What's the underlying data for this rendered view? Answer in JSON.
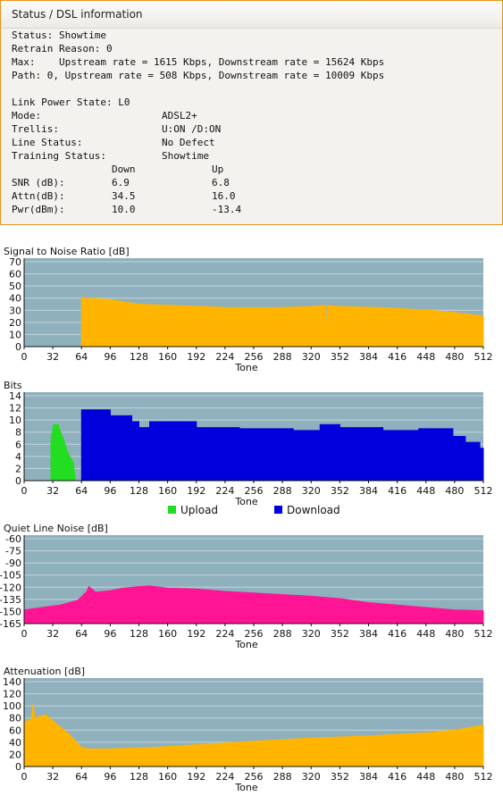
{
  "panel": {
    "title": "Status / DSL information",
    "lines": [
      "Status: Showtime",
      "Retrain Reason: 0",
      "Max:    Upstream rate = 1615 Kbps, Downstream rate = 15624 Kbps",
      "Path: 0, Upstream rate = 508 Kbps, Downstream rate = 10009 Kbps"
    ],
    "fields": [
      {
        "label": "Link Power State: L0",
        "value": ""
      },
      {
        "label": "Mode:",
        "value": "ADSL2+"
      },
      {
        "label": "Trellis:",
        "value": "U:ON /D:ON"
      },
      {
        "label": "Line Status:",
        "value": "No Defect"
      },
      {
        "label": "Training Status:",
        "value": "Showtime"
      }
    ],
    "table": {
      "header_down": "Down",
      "header_up": "Up",
      "rows": [
        {
          "label": "SNR (dB):",
          "down": "6.9",
          "up": "6.8"
        },
        {
          "label": "Attn(dB):",
          "down": "34.5",
          "up": "16.0"
        },
        {
          "label": "Pwr(dBm):",
          "down": "10.0",
          "up": "-13.4"
        }
      ]
    }
  },
  "colors": {
    "plot_bg": "#8fb0bd",
    "grid": "#c2d6dc",
    "orange": "#ffb400",
    "upload": "#22dd22",
    "download": "#0000dd",
    "noise": "#ff1493",
    "panel_border": "#e8941a"
  },
  "chart_data": [
    {
      "id": "snr",
      "type": "area",
      "title": "Signal to Noise Ratio [dB]",
      "xlabel": "Tone",
      "xlim": [
        0,
        512
      ],
      "ylim": [
        0,
        75
      ],
      "yticks": [
        "70",
        "60",
        "50",
        "40",
        "30",
        "20",
        "10",
        "0"
      ],
      "xticks": [
        "0",
        "32",
        "64",
        "96",
        "128",
        "160",
        "192",
        "224",
        "256",
        "288",
        "320",
        "352",
        "384",
        "416",
        "448",
        "480",
        "512"
      ],
      "series": [
        {
          "color": "#ffb400",
          "points": [
            [
              64,
              42
            ],
            [
              70,
              41
            ],
            [
              96,
              40
            ],
            [
              110,
              38
            ],
            [
              128,
              36
            ],
            [
              160,
              35
            ],
            [
              200,
              34
            ],
            [
              230,
              33
            ],
            [
              280,
              33
            ],
            [
              320,
              34
            ],
            [
              336,
              35
            ],
            [
              337,
              2
            ],
            [
              338,
              35
            ],
            [
              352,
              34
            ],
            [
              400,
              33
            ],
            [
              450,
              31
            ],
            [
              480,
              29
            ],
            [
              512,
              26
            ],
            [
              512,
              0
            ],
            [
              64,
              0
            ]
          ]
        }
      ]
    },
    {
      "id": "bits",
      "type": "area",
      "title": "Bits",
      "xlabel": "Tone",
      "xlim": [
        0,
        512
      ],
      "ylim": [
        0,
        15
      ],
      "yticks": [
        "14",
        "12",
        "10",
        "8",
        "6",
        "4",
        "2",
        "0"
      ],
      "xticks": [
        "0",
        "32",
        "64",
        "96",
        "128",
        "160",
        "192",
        "224",
        "256",
        "288",
        "320",
        "352",
        "384",
        "416",
        "448",
        "480",
        "512"
      ],
      "legend": [
        {
          "label": "Upload",
          "color": "#22dd22"
        },
        {
          "label": "Download",
          "color": "#0000dd"
        }
      ],
      "series": [
        {
          "color": "#22dd22",
          "points": [
            [
              30,
              0
            ],
            [
              30,
              7
            ],
            [
              33,
              9.5
            ],
            [
              38,
              9.5
            ],
            [
              40,
              8.5
            ],
            [
              44,
              7
            ],
            [
              48,
              5
            ],
            [
              55,
              3
            ],
            [
              57,
              0
            ]
          ]
        },
        {
          "color": "#0000dd",
          "points": [
            [
              64,
              0
            ],
            [
              64,
              12
            ],
            [
              96,
              12
            ],
            [
              96,
              11
            ],
            [
              120,
              11
            ],
            [
              120,
              10
            ],
            [
              128,
              10
            ],
            [
              128,
              9
            ],
            [
              140,
              9
            ],
            [
              140,
              10
            ],
            [
              192,
              10
            ],
            [
              192,
              9
            ],
            [
              240,
              9
            ],
            [
              240,
              8.8
            ],
            [
              300,
              8.8
            ],
            [
              300,
              8.5
            ],
            [
              330,
              8.5
            ],
            [
              330,
              9.5
            ],
            [
              352,
              9.5
            ],
            [
              352,
              9
            ],
            [
              400,
              9
            ],
            [
              400,
              8.5
            ],
            [
              440,
              8.5
            ],
            [
              440,
              8.8
            ],
            [
              478,
              8.8
            ],
            [
              478,
              7.5
            ],
            [
              492,
              7.5
            ],
            [
              492,
              6.5
            ],
            [
              508,
              6.5
            ],
            [
              508,
              5.5
            ],
            [
              512,
              5.5
            ],
            [
              512,
              0
            ]
          ]
        }
      ]
    },
    {
      "id": "qln",
      "type": "area",
      "title": "Quiet Line Noise [dB]",
      "xlabel": "Tone",
      "xlim": [
        0,
        512
      ],
      "ylim": [
        -165,
        -55
      ],
      "yticks": [
        "-60",
        "-75",
        "-90",
        "-105",
        "-120",
        "-135",
        "-150",
        "-165"
      ],
      "xticks": [
        "0",
        "32",
        "64",
        "96",
        "128",
        "160",
        "192",
        "224",
        "256",
        "288",
        "320",
        "352",
        "384",
        "416",
        "448",
        "480",
        "512"
      ],
      "series": [
        {
          "color": "#ff1493",
          "points": [
            [
              0,
              -148
            ],
            [
              20,
              -145
            ],
            [
              40,
              -142
            ],
            [
              60,
              -136
            ],
            [
              70,
              -125
            ],
            [
              72,
              -119
            ],
            [
              80,
              -126
            ],
            [
              96,
              -124
            ],
            [
              110,
              -121
            ],
            [
              128,
              -119
            ],
            [
              140,
              -118
            ],
            [
              160,
              -121
            ],
            [
              192,
              -122
            ],
            [
              224,
              -125
            ],
            [
              256,
              -127
            ],
            [
              288,
              -129
            ],
            [
              320,
              -131
            ],
            [
              352,
              -134
            ],
            [
              384,
              -139
            ],
            [
              416,
              -142
            ],
            [
              448,
              -145
            ],
            [
              480,
              -148
            ],
            [
              512,
              -149
            ],
            [
              512,
              -165
            ],
            [
              0,
              -165
            ]
          ]
        }
      ]
    },
    {
      "id": "attn",
      "type": "area",
      "title": "Attenuation [dB]",
      "xlabel": "Tone",
      "xlim": [
        0,
        512
      ],
      "ylim": [
        0,
        150
      ],
      "yticks": [
        "140",
        "120",
        "100",
        "80",
        "60",
        "40",
        "20",
        "0"
      ],
      "xticks": [
        "0",
        "32",
        "64",
        "96",
        "128",
        "160",
        "192",
        "224",
        "256",
        "288",
        "320",
        "352",
        "384",
        "416",
        "448",
        "480",
        "512"
      ],
      "series": [
        {
          "color": "#ffb400",
          "points": [
            [
              0,
              0
            ],
            [
              0,
              75
            ],
            [
              8,
              80
            ],
            [
              10,
              108
            ],
            [
              12,
              82
            ],
            [
              24,
              88
            ],
            [
              30,
              80
            ],
            [
              50,
              55
            ],
            [
              64,
              32
            ],
            [
              72,
              30
            ],
            [
              96,
              30
            ],
            [
              150,
              33
            ],
            [
              192,
              37
            ],
            [
              256,
              43
            ],
            [
              320,
              48
            ],
            [
              384,
              52
            ],
            [
              448,
              57
            ],
            [
              480,
              62
            ],
            [
              512,
              70
            ],
            [
              512,
              0
            ]
          ]
        }
      ]
    }
  ]
}
